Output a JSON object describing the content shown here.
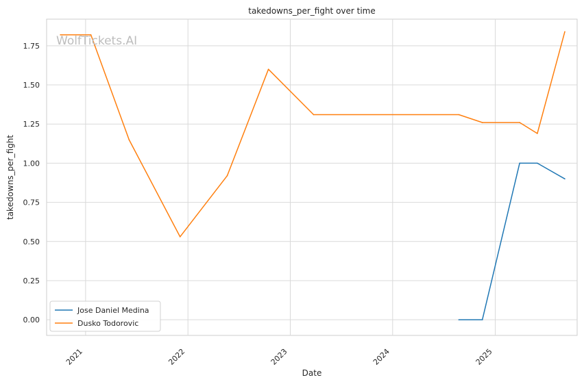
{
  "chart_data": {
    "type": "line",
    "title": "takedowns_per_fight over time",
    "xlabel": "Date",
    "ylabel": "takedowns_per_fight",
    "watermark": "WolfTickets.AI",
    "grid": true,
    "legend_position": "lower-left",
    "xlim": [
      "2020-08-15",
      "2025-10-20"
    ],
    "ylim": [
      -0.1,
      1.92
    ],
    "x_ticks": [
      "2021",
      "2022",
      "2023",
      "2024",
      "2025"
    ],
    "y_ticks": [
      "0.00",
      "0.25",
      "0.50",
      "0.75",
      "1.00",
      "1.25",
      "1.50",
      "1.75"
    ],
    "series": [
      {
        "name": "Jose Daniel Medina",
        "color": "#1f77b4",
        "x": [
          "2024-08-24",
          "2024-11-16",
          "2025-03-29",
          "2025-05-31",
          "2025-09-06"
        ],
        "y": [
          0.0,
          0.0,
          1.0,
          1.0,
          0.9
        ]
      },
      {
        "name": "Dusko Todorovic",
        "color": "#ff7f0e",
        "x": [
          "2020-10-03",
          "2021-01-20",
          "2021-06-05",
          "2021-12-04",
          "2022-05-21",
          "2022-10-15",
          "2023-03-25",
          "2024-08-24",
          "2024-11-16",
          "2025-03-29",
          "2025-05-31",
          "2025-09-06"
        ],
        "y": [
          1.82,
          1.82,
          1.15,
          0.53,
          0.92,
          1.6,
          1.31,
          1.31,
          1.26,
          1.26,
          1.19,
          1.84
        ]
      }
    ]
  }
}
